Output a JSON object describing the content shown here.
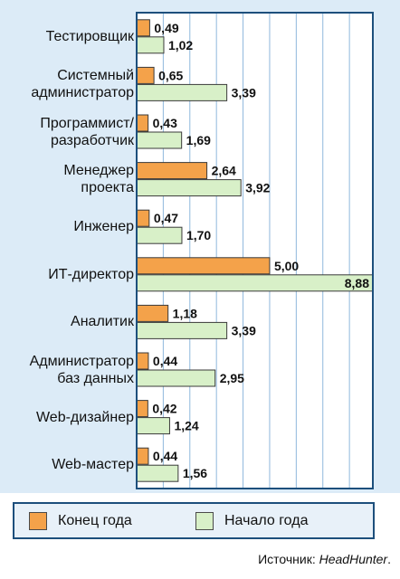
{
  "chart_data": {
    "type": "bar",
    "orientation": "horizontal",
    "categories": [
      "Тестировщик",
      "Системный\nадминистратор",
      "Программист/\nразработчик",
      "Менеджер\nпроекта",
      "Инженер",
      "ИТ-директор",
      "Аналитик",
      "Администратор\nбаз данных",
      "Web-дизайнер",
      "Web-мастер"
    ],
    "series": [
      {
        "name": "Конец года",
        "color": "#f4a24a",
        "values": [
          0.49,
          0.65,
          0.43,
          2.64,
          0.47,
          5.0,
          1.18,
          0.44,
          0.42,
          0.44
        ],
        "labels": [
          "0,49",
          "0,65",
          "0,43",
          "2,64",
          "0,47",
          "5,00",
          "1,18",
          "0,44",
          "0,42",
          "0,44"
        ]
      },
      {
        "name": "Начало года",
        "color": "#d8f0c8",
        "values": [
          1.02,
          3.39,
          1.69,
          3.92,
          1.7,
          8.88,
          3.39,
          2.95,
          1.24,
          1.56
        ],
        "labels": [
          "1,02",
          "3,39",
          "1,69",
          "3,92",
          "1,70",
          "8,88",
          "3,39",
          "2,95",
          "1,24",
          "1,56"
        ]
      }
    ],
    "xlim": [
      0,
      8.88
    ],
    "grid": true,
    "legend_position": "bottom"
  },
  "source": {
    "prefix": "Источник:",
    "name": "HeadHunter",
    "suffix": "."
  }
}
